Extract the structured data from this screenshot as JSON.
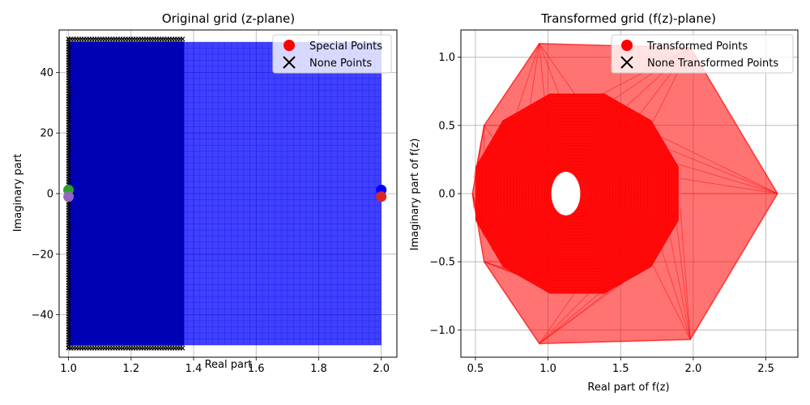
{
  "chart_data": [
    {
      "type": "scatter",
      "title": "Original grid (z-plane)",
      "xlabel": "Real part",
      "ylabel": "Imaginary part",
      "xlim": [
        0.97,
        2.05
      ],
      "ylim": [
        -54,
        54
      ],
      "xticks": [
        1.0,
        1.2,
        1.4,
        1.6,
        1.8,
        2.0
      ],
      "xtick_labels": [
        "1.0",
        "1.2",
        "1.4",
        "1.6",
        "1.8",
        "2.0"
      ],
      "yticks": [
        -40,
        -20,
        0,
        20,
        40
      ],
      "ytick_labels": [
        "−40",
        "−20",
        "0",
        "20",
        "40"
      ],
      "grid": true,
      "legend_position": "top-right",
      "legend": [
        {
          "label": "Special Points",
          "marker": "circle",
          "color": "#ff0000"
        },
        {
          "label": "None Points",
          "marker": "x",
          "color": "#000000"
        }
      ],
      "grid_region": {
        "x": [
          1.0,
          2.0
        ],
        "y": [
          -50,
          50
        ],
        "color": "#0000ff"
      },
      "none_region": {
        "x": [
          1.0,
          1.37
        ],
        "y": [
          -51,
          51
        ],
        "color": "#000000"
      },
      "special_points": [
        {
          "x": 1.0,
          "y": 1.2,
          "color": "#2ca02c"
        },
        {
          "x": 1.0,
          "y": -1.0,
          "color": "#9467bd"
        },
        {
          "x": 2.0,
          "y": 1.2,
          "color": "#0000ff"
        },
        {
          "x": 2.0,
          "y": -1.0,
          "color": "#d62728"
        }
      ]
    },
    {
      "type": "line",
      "title": "Transformed grid (f(z)-plane)",
      "xlabel": "Real part of f(z)",
      "ylabel": "Imaginary part of f(z)",
      "xlim": [
        0.4,
        2.72
      ],
      "ylim": [
        -1.2,
        1.2
      ],
      "xticks": [
        0.5,
        1.0,
        1.5,
        2.0,
        2.5
      ],
      "xtick_labels": [
        "0.5",
        "1.0",
        "1.5",
        "2.0",
        "2.5"
      ],
      "yticks": [
        -1.0,
        -0.5,
        0.0,
        0.5,
        1.0
      ],
      "ytick_labels": [
        "−1.0",
        "−0.5",
        "0.0",
        "0.5",
        "1.0"
      ],
      "grid": true,
      "legend_position": "top-right",
      "legend": [
        {
          "label": "Transformed Points",
          "marker": "circle",
          "color": "#ff0000"
        },
        {
          "label": "None Transformed Points",
          "marker": "x",
          "color": "#000000"
        }
      ],
      "curve_color": "#ff0000",
      "outer_hexagon": [
        [
          2.58,
          0.0
        ],
        [
          1.98,
          1.07
        ],
        [
          0.94,
          1.1
        ],
        [
          0.56,
          0.5
        ],
        [
          0.48,
          0.0
        ],
        [
          0.56,
          -0.5
        ],
        [
          0.94,
          -1.1
        ],
        [
          1.98,
          -1.07
        ]
      ],
      "rings": {
        "center": [
          1.2,
          0.0
        ],
        "inner_radius": 0.1,
        "outer_radius": 0.72,
        "sides": 12
      },
      "hole": {
        "center": [
          1.1,
          0.0
        ],
        "radius": 0.1
      }
    }
  ]
}
